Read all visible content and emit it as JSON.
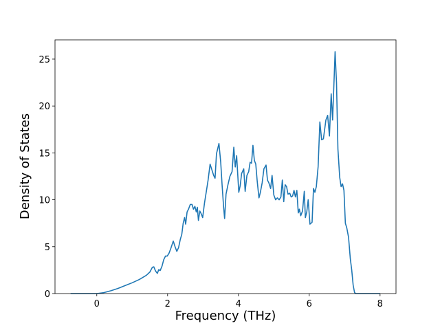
{
  "chart_data": {
    "type": "line",
    "xlabel": "Frequency (THz)",
    "ylabel": "Density of States",
    "xlim": [
      -1.18,
      8.45
    ],
    "ylim": [
      0,
      27.05
    ],
    "xticks": [
      0,
      2,
      4,
      6,
      8
    ],
    "yticks": [
      0,
      5,
      10,
      15,
      20,
      25
    ],
    "grid": false,
    "x": [
      -0.74,
      0,
      0.2,
      0.4,
      0.6,
      0.8,
      1.0,
      1.2,
      1.4,
      1.5,
      1.57,
      1.61,
      1.66,
      1.71,
      1.75,
      1.79,
      1.84,
      1.89,
      1.94,
      1.99,
      2.04,
      2.09,
      2.16,
      2.21,
      2.26,
      2.31,
      2.36,
      2.4,
      2.44,
      2.48,
      2.51,
      2.55,
      2.59,
      2.64,
      2.69,
      2.73,
      2.77,
      2.81,
      2.84,
      2.87,
      2.91,
      2.95,
      2.99,
      3.04,
      3.09,
      3.14,
      3.2,
      3.25,
      3.3,
      3.34,
      3.38,
      3.45,
      3.5,
      3.54,
      3.58,
      3.61,
      3.65,
      3.71,
      3.76,
      3.82,
      3.87,
      3.91,
      3.95,
      4.01,
      4.05,
      4.09,
      4.15,
      4.19,
      4.24,
      4.29,
      4.33,
      4.37,
      4.41,
      4.45,
      4.49,
      4.53,
      4.58,
      4.62,
      4.67,
      4.72,
      4.78,
      4.82,
      4.86,
      4.91,
      4.95,
      5.0,
      5.05,
      5.1,
      5.15,
      5.2,
      5.24,
      5.28,
      5.32,
      5.36,
      5.4,
      5.45,
      5.49,
      5.53,
      5.57,
      5.61,
      5.65,
      5.69,
      5.72,
      5.76,
      5.81,
      5.86,
      5.89,
      5.93,
      5.97,
      6.02,
      6.08,
      6.12,
      6.16,
      6.2,
      6.25,
      6.3,
      6.35,
      6.4,
      6.47,
      6.52,
      6.57,
      6.62,
      6.66,
      6.73,
      6.77,
      6.81,
      6.86,
      6.9,
      6.94,
      6.98,
      7.02,
      7.06,
      7.11,
      7.16,
      7.2,
      7.24,
      7.28,
      7.32,
      8.0
    ],
    "series": [
      {
        "color": "#1f77b4",
        "values": [
          0,
          0,
          0.1,
          0.3,
          0.55,
          0.85,
          1.15,
          1.5,
          1.95,
          2.3,
          2.8,
          2.85,
          2.4,
          2.15,
          2.55,
          2.45,
          2.9,
          3.6,
          4.0,
          4.0,
          4.3,
          4.8,
          5.6,
          5.0,
          4.5,
          4.9,
          5.8,
          6.3,
          7.5,
          8.1,
          7.4,
          8.7,
          9.0,
          9.5,
          9.5,
          9.0,
          9.3,
          8.7,
          9.2,
          7.8,
          8.8,
          8.5,
          8.1,
          9.6,
          10.8,
          12.0,
          13.8,
          13.2,
          12.6,
          12.3,
          14.9,
          16.0,
          14.0,
          11.5,
          9.3,
          8.0,
          10.6,
          11.7,
          12.5,
          13.0,
          15.6,
          13.5,
          14.7,
          10.8,
          11.5,
          12.8,
          13.3,
          10.9,
          12.6,
          13.0,
          14.0,
          13.9,
          15.8,
          14.2,
          13.8,
          12.0,
          10.2,
          10.8,
          11.8,
          13.3,
          13.7,
          12.1,
          11.8,
          11.2,
          12.6,
          10.5,
          10.0,
          10.2,
          10.0,
          10.3,
          12.1,
          9.8,
          11.6,
          11.4,
          10.6,
          10.7,
          10.3,
          10.4,
          11.0,
          10.3,
          11.0,
          8.6,
          9.0,
          8.3,
          8.8,
          10.9,
          8.1,
          8.7,
          10.0,
          7.4,
          7.6,
          11.2,
          10.8,
          11.4,
          13.5,
          18.3,
          16.4,
          16.5,
          18.5,
          19.0,
          16.8,
          21.3,
          18.5,
          25.8,
          22.5,
          15.4,
          12.4,
          11.4,
          11.7,
          11.0,
          7.5,
          7.0,
          6.0,
          3.7,
          2.5,
          0.9,
          0.1,
          0,
          0
        ]
      }
    ]
  }
}
